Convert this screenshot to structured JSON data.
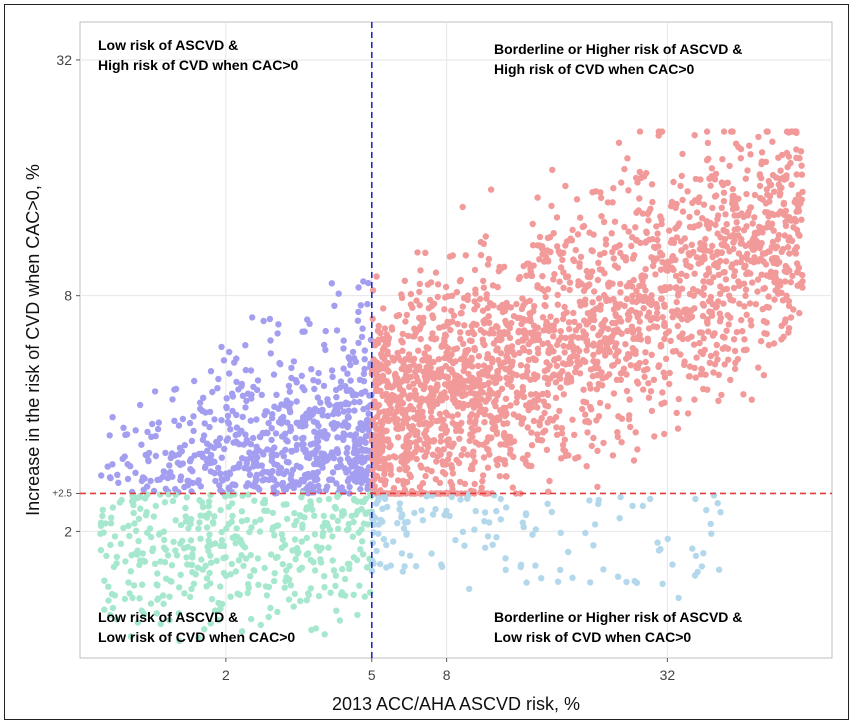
{
  "chart_data": {
    "type": "scatter",
    "xlabel": "2013 ACC/AHA ASCVD risk, %",
    "ylabel": "Increase in the risk of CVD when CAC>0, %",
    "x_scale": "log",
    "y_scale": "log",
    "xlim": [
      0.8,
      90
    ],
    "ylim": [
      0.95,
      40
    ],
    "x_ticks": [
      {
        "value": 2,
        "label": "2"
      },
      {
        "value": 5,
        "label": "5"
      },
      {
        "value": 8,
        "label": "8"
      },
      {
        "value": 32,
        "label": "32"
      }
    ],
    "y_ticks": [
      {
        "value": 2,
        "label": "2"
      },
      {
        "value": 2.5,
        "label": "+2.5"
      },
      {
        "value": 8,
        "label": "8"
      },
      {
        "value": 32,
        "label": "32"
      }
    ],
    "grid": true,
    "vline": {
      "x": 5,
      "color": "#1f2fbf",
      "style": "dashed"
    },
    "hline": {
      "y": 2.5,
      "color": "#e33b3b",
      "style": "dashed"
    },
    "quadrants": [
      {
        "name": "Low risk of ASCVD & High risk of CVD when CAC>0",
        "line1": "Low risk of ASCVD &",
        "line2": "High risk of CVD when CAC>0",
        "color": "#a39ef0",
        "x_range": [
          0.9,
          5
        ],
        "y_range": [
          2.5,
          8.7
        ],
        "n_points": 680
      },
      {
        "name": "Borderline or Higher risk of ASCVD & High risk of CVD when CAC>0",
        "line1": "Borderline or Higher risk of ASCVD &",
        "line2": "High risk of CVD when CAC>0",
        "color": "#f29a9a",
        "x_range": [
          5,
          75
        ],
        "y_range": [
          2.5,
          21
        ],
        "n_points": 2300
      },
      {
        "name": "Low risk of ASCVD & Low risk of CVD when CAC>0",
        "line1": "Low risk of ASCVD &",
        "line2": "Low risk of CVD when CAC>0",
        "color": "#a6e8cd",
        "x_range": [
          0.9,
          5
        ],
        "y_range": [
          1.05,
          2.5
        ],
        "n_points": 420
      },
      {
        "name": "Borderline or Higher risk of ASCVD & Low risk of CVD when CAC>0",
        "line1": "Borderline or Higher risk of ASCVD &",
        "line2": "Low risk of CVD when CAC>0",
        "color": "#b3d8ec",
        "x_range": [
          5,
          45
        ],
        "y_range": [
          1.3,
          2.5
        ],
        "n_points": 140
      }
    ]
  }
}
